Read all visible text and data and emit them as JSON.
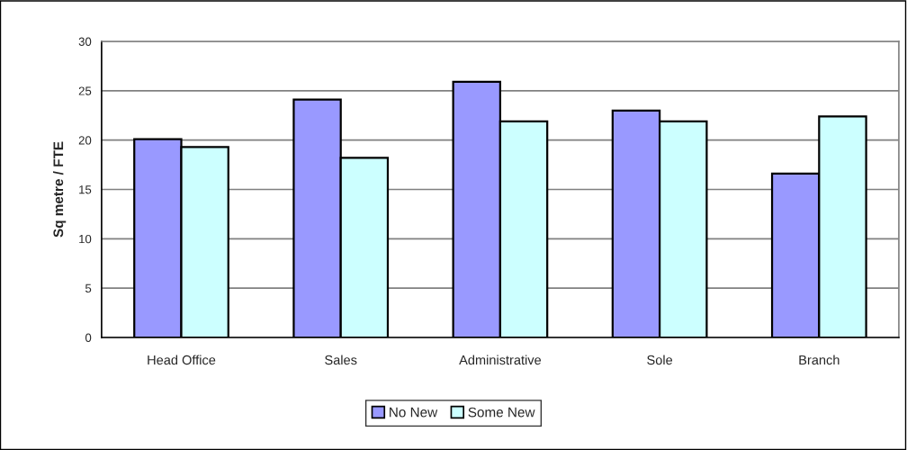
{
  "chart_data": {
    "type": "bar",
    "ylabel": "Sq metre / FTE",
    "categories": [
      "Head Office",
      "Sales",
      "Administrative",
      "Sole",
      "Branch"
    ],
    "series": [
      {
        "name": "No New",
        "color": "#9999ff",
        "values": [
          20.1,
          24.1,
          25.9,
          23.0,
          16.6
        ]
      },
      {
        "name": "Some New",
        "color": "#ccffff",
        "values": [
          19.3,
          18.2,
          21.9,
          21.9,
          22.4
        ]
      }
    ],
    "ylim": [
      0,
      30
    ],
    "yticks": [
      0,
      5,
      10,
      15,
      20,
      25,
      30
    ],
    "grid": "y",
    "legend": "bottom"
  }
}
